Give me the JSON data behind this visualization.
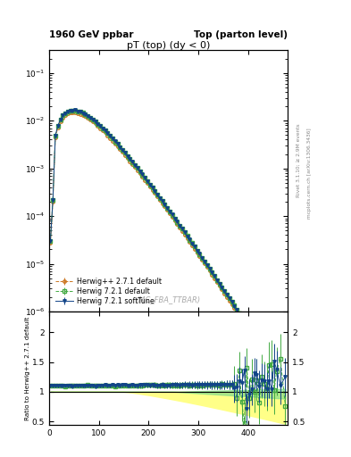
{
  "title_left": "1960 GeV ppbar",
  "title_right": "Top (parton level)",
  "plot_title": "pT (top) (dy < 0)",
  "watermark": "(MC_FBA_TTBAR)",
  "right_label_top": "Rivet 3.1.10; ≥ 2.9M events",
  "right_label_bottom": "mcplots.cern.ch [arXiv:1306.3436]",
  "ylabel_bottom": "Ratio to Herwig++ 2.7.1 default",
  "legend": [
    {
      "label": "Herwig++ 2.7.1 default",
      "color": "#cc7722",
      "marker": "o",
      "linestyle": "--"
    },
    {
      "label": "Herwig 7.2.1 default",
      "color": "#44aa44",
      "marker": "s",
      "linestyle": "--"
    },
    {
      "label": "Herwig 7.2.1 softTune",
      "color": "#114488",
      "marker": "v",
      "linestyle": "-"
    }
  ],
  "xlim": [
    0,
    480
  ],
  "ylim_main": [
    1e-06,
    0.3
  ],
  "ylim_ratio": [
    0.44,
    2.35
  ],
  "ratio_yticks": [
    0.5,
    1.0,
    1.5,
    2.0
  ],
  "bg_color": "#ffffff",
  "inner_bg": "#ffffff"
}
